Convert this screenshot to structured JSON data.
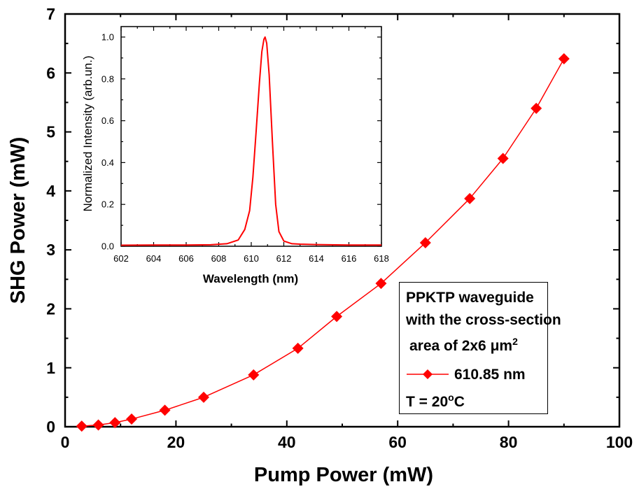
{
  "chart_data": [
    {
      "type": "line",
      "xlabel": "Pump Power (mW)",
      "ylabel": "SHG Power (mW)",
      "xlim": [
        0,
        100
      ],
      "ylim": [
        0,
        7
      ],
      "x_ticks": [
        "0",
        "20",
        "40",
        "60",
        "80",
        "100"
      ],
      "y_ticks": [
        "0",
        "1",
        "2",
        "3",
        "4",
        "5",
        "6",
        "7"
      ],
      "grid": false,
      "legend_position": "bottom-right",
      "series": [
        {
          "name": "610.85 nm",
          "color": "#ff0000",
          "marker": "diamond",
          "x": [
            3,
            6,
            9,
            12,
            18,
            25,
            34,
            42,
            49,
            57,
            65,
            73,
            79,
            85,
            90
          ],
          "y": [
            0.01,
            0.03,
            0.07,
            0.13,
            0.28,
            0.5,
            0.88,
            1.33,
            1.87,
            2.43,
            3.12,
            3.87,
            4.55,
            5.4,
            6.24
          ]
        }
      ],
      "legend_text": {
        "line1": "PPKTP waveguide",
        "line2": "with the cross-section",
        "line3_prefix": "area of 2x6 ",
        "line3_unit": "μm",
        "line3_sup": "2",
        "temp_prefix": "T = 20",
        "temp_sup": "o",
        "temp_suffix": "C"
      }
    },
    {
      "type": "line",
      "xlabel": "Wavelength (nm)",
      "ylabel": "Normalized Intensity (arb.un.)",
      "xlim": [
        602,
        618
      ],
      "ylim": [
        0,
        1.05
      ],
      "x_ticks": [
        "602",
        "604",
        "606",
        "608",
        "610",
        "612",
        "614",
        "616",
        "618"
      ],
      "y_ticks": [
        "0.0",
        "0.2",
        "0.4",
        "0.6",
        "0.8",
        "1.0"
      ],
      "grid": false,
      "series": [
        {
          "color": "#ff0000",
          "x": [
            602,
            604,
            606,
            607.5,
            608.5,
            609.2,
            609.6,
            609.9,
            610.1,
            610.3,
            610.5,
            610.65,
            610.78,
            610.85,
            610.95,
            611.1,
            611.3,
            611.5,
            611.7,
            612.0,
            612.5,
            613,
            614,
            616,
            618
          ],
          "y": [
            0.005,
            0.006,
            0.006,
            0.007,
            0.012,
            0.03,
            0.08,
            0.17,
            0.33,
            0.55,
            0.78,
            0.93,
            0.99,
            1.0,
            0.97,
            0.82,
            0.5,
            0.2,
            0.07,
            0.025,
            0.012,
            0.01,
            0.008,
            0.006,
            0.006
          ]
        }
      ]
    }
  ]
}
